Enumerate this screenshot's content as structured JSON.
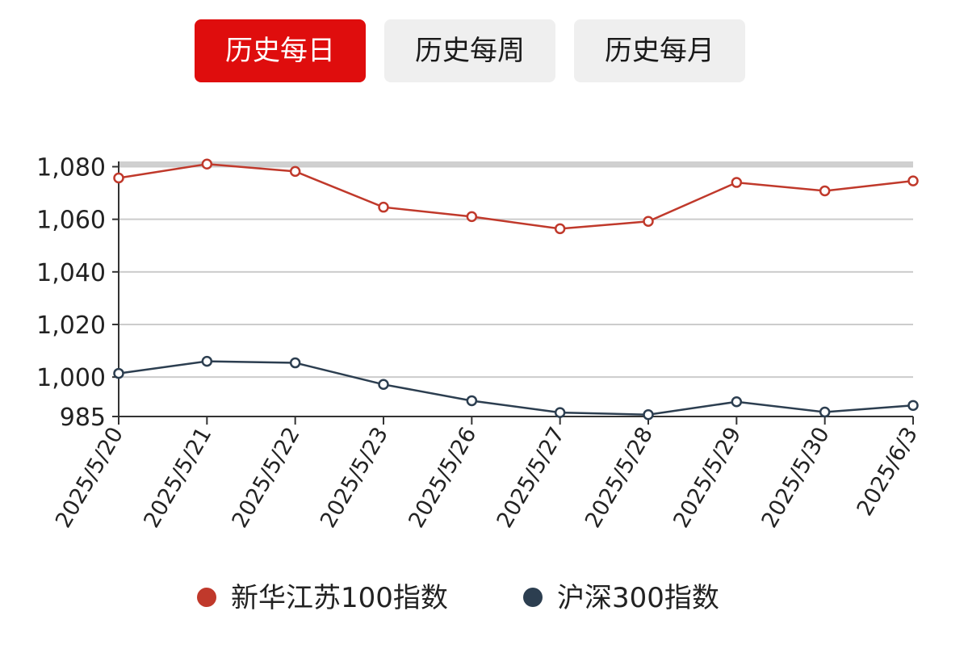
{
  "tabs": [
    {
      "label": "历史每日",
      "active": true
    },
    {
      "label": "历史每周",
      "active": false
    },
    {
      "label": "历史每月",
      "active": false
    }
  ],
  "colors": {
    "active_tab": "#df0d0d",
    "inactive_tab": "#efefef",
    "series_1": "#c0392b",
    "series_2": "#2c3e50",
    "grid": "#cccccc"
  },
  "chart_data": {
    "type": "line",
    "x": [
      "2025/5/20",
      "2025/5/21",
      "2025/5/22",
      "2025/5/23",
      "2025/5/26",
      "2025/5/27",
      "2025/5/28",
      "2025/5/29",
      "2025/5/30",
      "2025/6/3"
    ],
    "series": [
      {
        "name": "新华江苏100指数",
        "color": "#c0392b",
        "values": [
          1075.7,
          1081.0,
          1078.2,
          1064.6,
          1061.0,
          1056.4,
          1059.2,
          1074.0,
          1070.8,
          1074.6
        ]
      },
      {
        "name": "沪深300指数",
        "color": "#2c3e50",
        "values": [
          1001.4,
          1006.0,
          1005.4,
          997.2,
          991.0,
          986.5,
          985.7,
          990.6,
          986.7,
          989.2
        ]
      }
    ],
    "y_ticks": [
      985,
      1000,
      1020,
      1040,
      1060,
      1080
    ],
    "y_tick_labels": [
      "985",
      "1,000",
      "1,020",
      "1,040",
      "1,060",
      "1,080"
    ],
    "ylim": [
      985,
      1082
    ],
    "grid": true,
    "legend_position": "bottom",
    "title": "",
    "xlabel": "",
    "ylabel": ""
  }
}
